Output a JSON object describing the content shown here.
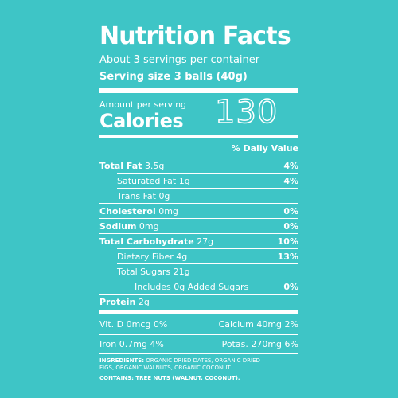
{
  "label": {
    "title": "Nutrition Facts",
    "servings": "About 3 servings per container",
    "serving_size": "Serving size 3 balls (40g)",
    "amount_per_serving": "Amount per serving",
    "calories_label": "Calories",
    "calories": "130",
    "daily_value_header": "% Daily Value",
    "nutrients": [
      {
        "name": "Total Fat",
        "amount": "3.5g",
        "dv": "4%",
        "sub": [
          {
            "name": "Saturated Fat",
            "amount": "1g",
            "dv": "4%"
          },
          {
            "name": "Trans Fat",
            "amount": "0g"
          }
        ]
      },
      {
        "name": "Cholesterol",
        "amount": "0mg",
        "dv": "0%"
      },
      {
        "name": "Sodium",
        "amount": "0mg",
        "dv": "0%"
      },
      {
        "name": "Total Carbohydrate",
        "amount": "27g",
        "dv": "10%",
        "sub": [
          {
            "name": "Dietary Fiber",
            "amount": "4g",
            "dv": "13%"
          },
          {
            "name": "Total Sugars",
            "amount": "21g",
            "sub": [
              {
                "name": "Includes 0g Added Sugars",
                "dv": "0%"
              }
            ]
          }
        ]
      },
      {
        "name": "Protein",
        "amount": "2g"
      }
    ],
    "vitamins": [
      [
        {
          "name": "Vit. D",
          "amount": "0mcg",
          "dv": "0%"
        },
        {
          "name": "Calcium",
          "amount": "40mg",
          "dv": "2%"
        }
      ],
      [
        {
          "name": "Iron",
          "amount": "0.7mg",
          "dv": "4%"
        },
        {
          "name": "Potas.",
          "amount": "270mg",
          "dv": "6%"
        }
      ]
    ],
    "ingredients_label": "INGREDIENTS:",
    "ingredients": "ORGANIC DRIED DATES, ORGANIC DRIED FIGS, ORGANIC WALNUTS, ORGANIC COCONUT.",
    "contains": "CONTAINS: TREE NUTS (WALNUT, COCONUT)."
  }
}
